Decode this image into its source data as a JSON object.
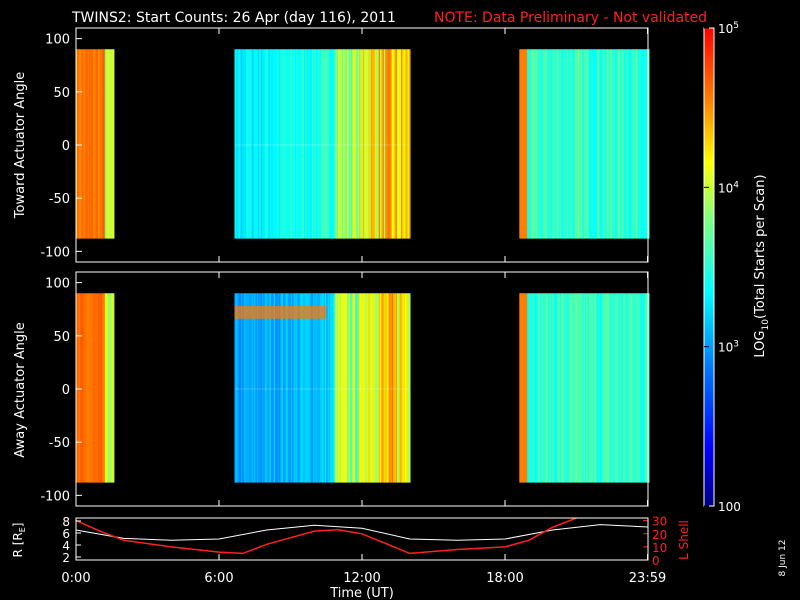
{
  "title": "TWINS2: Start Counts: 26 Apr (day 116), 2011",
  "note": "NOTE: Data Preliminary - Not validated",
  "panels": [
    {
      "id": "toward",
      "ylabel": "Toward Actuator Angle",
      "yticks": [
        "100",
        "50",
        "0",
        "-50",
        "-100"
      ],
      "ylim": [
        -110,
        110
      ]
    },
    {
      "id": "away",
      "ylabel": "Away Actuator Angle",
      "yticks": [
        "100",
        "50",
        "0",
        "-50",
        "-100"
      ],
      "ylim": [
        -110,
        110
      ]
    }
  ],
  "colorbar": {
    "label": "LOG10(Total Starts per Scan)",
    "label_main": "LOG",
    "label_sub": "10",
    "label_rest": "(Total Starts per Scan)",
    "ticks": [
      {
        "base": "10",
        "exp": "5",
        "value": 5
      },
      {
        "base": "10",
        "exp": "4",
        "value": 4
      },
      {
        "base": "10",
        "exp": "3",
        "value": 3
      },
      {
        "base": "100",
        "exp": "",
        "value": 2
      }
    ],
    "range": [
      2,
      5
    ]
  },
  "orbit": {
    "left_label": "R [R",
    "left_label_sub": "E",
    "left_label_end": "]",
    "right_label": "L Shell",
    "left_ticks": [
      "8",
      "6",
      "4",
      "2"
    ],
    "right_ticks": [
      "30",
      "20",
      "10",
      "0"
    ],
    "left_color": "#ffffff",
    "right_color": "#ff2020"
  },
  "xaxis": {
    "label": "Time (UT)",
    "ticks": [
      "0:00",
      "6:00",
      "12:00",
      "18:00",
      "23:59"
    ],
    "tick_hours": [
      0,
      6,
      12,
      18,
      23.98
    ]
  },
  "date_stamp": "8 Jun 12",
  "chart_data": {
    "type": "heatmap",
    "title": "TWINS2: Start Counts: 26 Apr (day 116), 2011",
    "xlabel": "Time (UT)",
    "xlim_hours": [
      0,
      24
    ],
    "data_intervals_hours": [
      [
        0.0,
        1.55
      ],
      [
        6.65,
        14.0
      ],
      [
        18.6,
        24.0
      ]
    ],
    "actuator_angle_range": [
      -88,
      90
    ],
    "value_scale": "log10 counts, 2 to 5",
    "series": [
      {
        "name": "R [RE]",
        "values_hours": [
          0,
          2,
          4,
          6,
          8,
          10,
          12,
          14,
          16,
          18,
          20,
          22,
          24
        ],
        "values": [
          6.5,
          5.1,
          4.8,
          5.0,
          6.5,
          7.3,
          6.8,
          5.0,
          4.8,
          5.0,
          6.5,
          7.4,
          7.0
        ]
      },
      {
        "name": "L Shell",
        "values_hours": [
          0,
          1,
          2,
          4,
          6,
          7,
          8,
          10,
          11,
          12,
          14,
          16,
          18,
          19,
          20,
          21
        ],
        "values": [
          30,
          22,
          15,
          10,
          6,
          5,
          12,
          22,
          23,
          20,
          5,
          8,
          10,
          15,
          25,
          32
        ]
      }
    ]
  }
}
